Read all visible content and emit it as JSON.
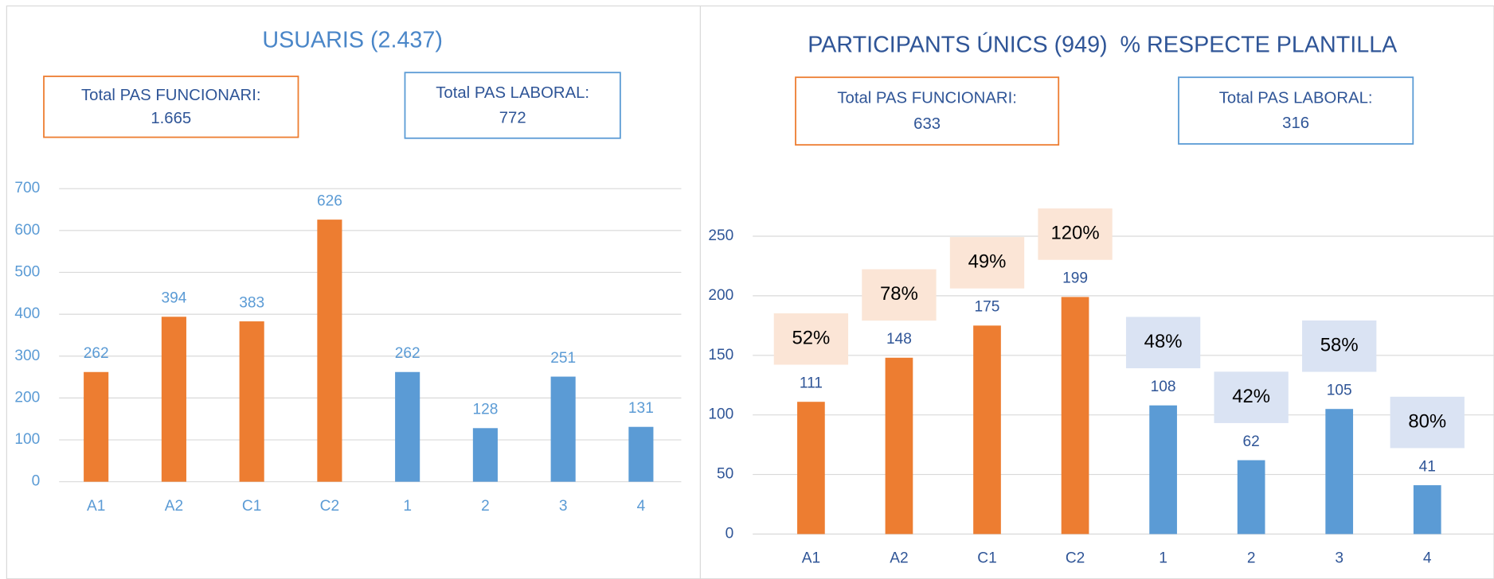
{
  "chart_data": [
    {
      "type": "bar",
      "title": "USUARIS (2.437)",
      "boxes": [
        {
          "label": "Total PAS FUNCIONARI:",
          "value": "1.665",
          "color": "#ED7D31"
        },
        {
          "label": "Total PAS LABORAL:",
          "value": "772",
          "color": "#5B9BD5"
        }
      ],
      "categories": [
        "A1",
        "A2",
        "C1",
        "C2",
        "1",
        "2",
        "3",
        "4"
      ],
      "values": [
        262,
        394,
        383,
        626,
        262,
        128,
        251,
        131
      ],
      "colors": [
        "#ED7D31",
        "#ED7D31",
        "#ED7D31",
        "#ED7D31",
        "#5B9BD5",
        "#5B9BD5",
        "#5B9BD5",
        "#5B9BD5"
      ],
      "ylim": [
        0,
        700
      ],
      "yticks": [
        0,
        100,
        200,
        300,
        400,
        500,
        600,
        700
      ],
      "grid": true
    },
    {
      "type": "bar",
      "title": "PARTICIPANTS ÚNICS (949)  % RESPECTE PLANTILLA",
      "boxes": [
        {
          "label": "Total PAS FUNCIONARI:",
          "value": "633",
          "color": "#ED7D31"
        },
        {
          "label": "Total PAS LABORAL:",
          "value": "316",
          "color": "#5B9BD5"
        }
      ],
      "categories": [
        "A1",
        "A2",
        "C1",
        "C2",
        "1",
        "2",
        "3",
        "4"
      ],
      "values": [
        111,
        148,
        175,
        199,
        108,
        62,
        105,
        41
      ],
      "colors": [
        "#ED7D31",
        "#ED7D31",
        "#ED7D31",
        "#ED7D31",
        "#5B9BD5",
        "#5B9BD5",
        "#5B9BD5",
        "#5B9BD5"
      ],
      "percentages": [
        52,
        78,
        49,
        120,
        48,
        42,
        58,
        80
      ],
      "percentage_labels": [
        "52%",
        "78%",
        "49%",
        "120%",
        "48%",
        "42%",
        "58%",
        "80%"
      ],
      "ylim": [
        0,
        250
      ],
      "yticks": [
        0,
        50,
        100,
        150,
        200,
        250
      ],
      "grid": true
    }
  ]
}
